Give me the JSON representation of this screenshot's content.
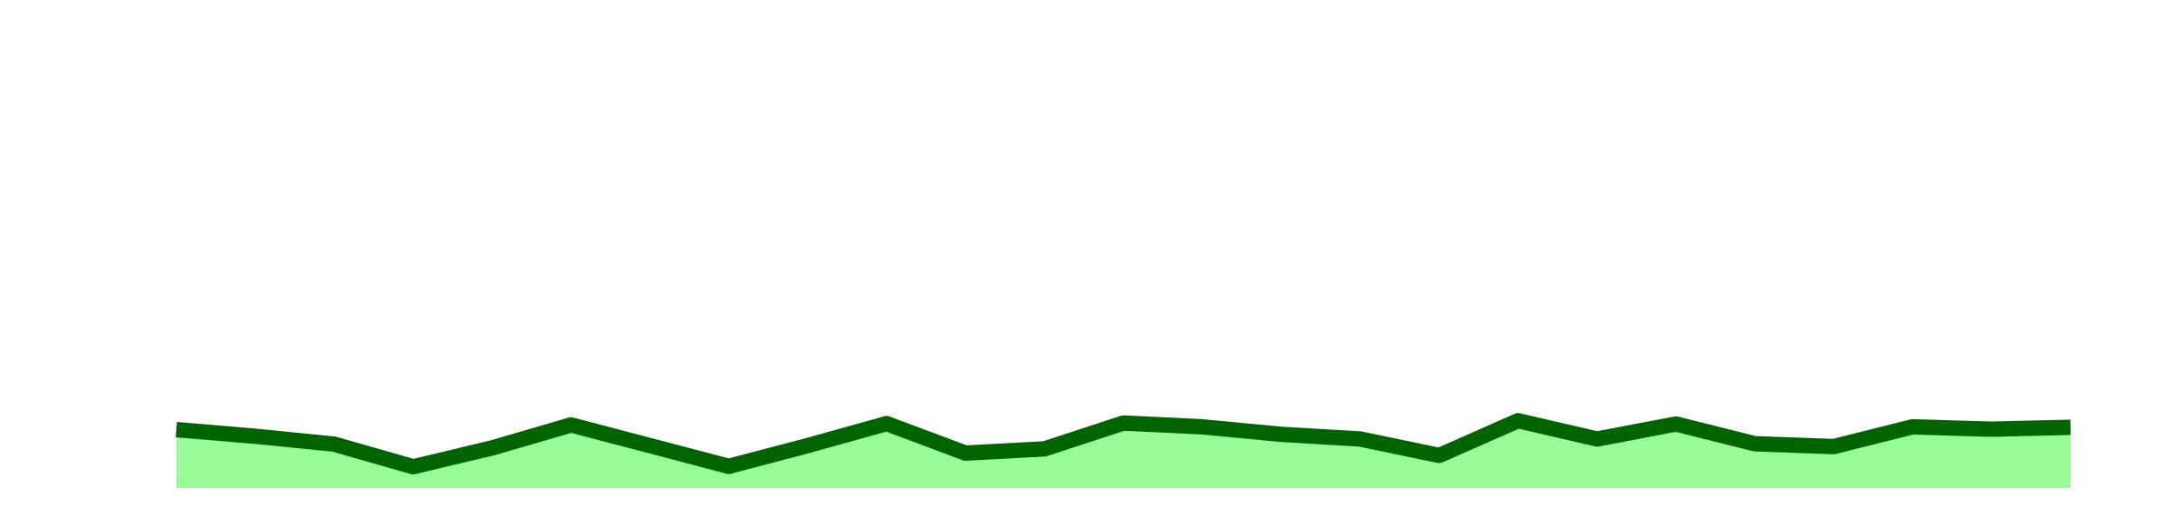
{
  "chart_data": {
    "type": "area",
    "title": "",
    "xlabel": "",
    "ylabel": "",
    "grid": false,
    "legend": "none",
    "x": [
      0,
      1,
      2,
      3,
      4,
      5,
      6,
      7,
      8,
      9,
      10,
      11,
      12,
      13,
      14,
      15,
      16,
      17,
      18,
      19,
      20,
      21,
      22,
      23,
      24
    ],
    "ylim": [
      0,
      100
    ],
    "series": [
      {
        "values": [
          12.4,
          11.0,
          9.3,
          4.5,
          8.5,
          13.4,
          9.0,
          4.6,
          9.0,
          13.7,
          7.4,
          8.3,
          13.8,
          13.0,
          11.4,
          10.4,
          6.9,
          14.3,
          10.4,
          13.6,
          9.4,
          8.8,
          13.0,
          12.5,
          12.9
        ],
        "line_color": "#006400",
        "fill_color": "#98FB98"
      }
    ]
  }
}
